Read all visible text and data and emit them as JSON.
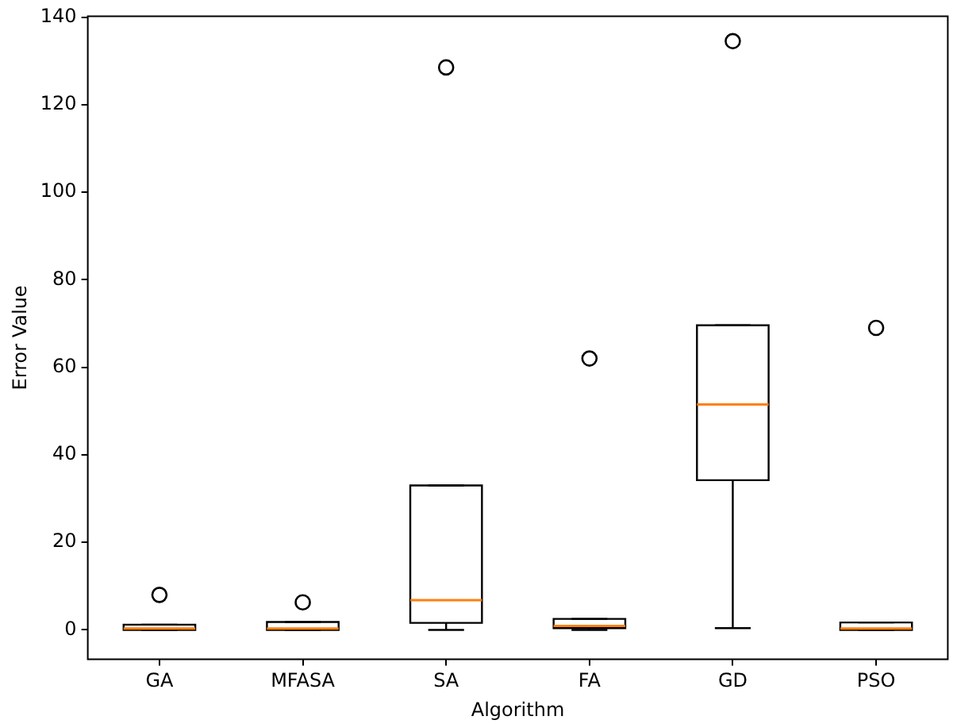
{
  "chart_data": {
    "type": "box",
    "xlabel": "Algorithm",
    "ylabel": "Error Value",
    "categories": [
      "GA",
      "MFASA",
      "SA",
      "FA",
      "GD",
      "PSO"
    ],
    "boxes": [
      {
        "low": 0,
        "q1": 0,
        "median": 0.3,
        "q3": 1.2,
        "high": 1.2,
        "outliers": [
          8
        ]
      },
      {
        "low": 0,
        "q1": 0,
        "median": 0.3,
        "q3": 1.8,
        "high": 1.8,
        "outliers": [
          6.3
        ]
      },
      {
        "low": 0,
        "q1": 1.6,
        "median": 6.8,
        "q3": 33,
        "high": 33,
        "outliers": [
          128.5
        ]
      },
      {
        "low": 0,
        "q1": 0.4,
        "median": 0.9,
        "q3": 2.5,
        "high": 2.5,
        "outliers": [
          62
        ]
      },
      {
        "low": 0.4,
        "q1": 34.2,
        "median": 51.5,
        "q3": 69.6,
        "high": 69.6,
        "outliers": [
          134.5
        ]
      },
      {
        "low": 0,
        "q1": 0,
        "median": 0.3,
        "q3": 1.7,
        "high": 1.7,
        "outliers": [
          69
        ]
      }
    ],
    "ylim": [
      -6.7,
      140.2
    ],
    "yticks": [
      0,
      20,
      40,
      60,
      80,
      100,
      120,
      140
    ],
    "grid": false,
    "legend": false
  }
}
